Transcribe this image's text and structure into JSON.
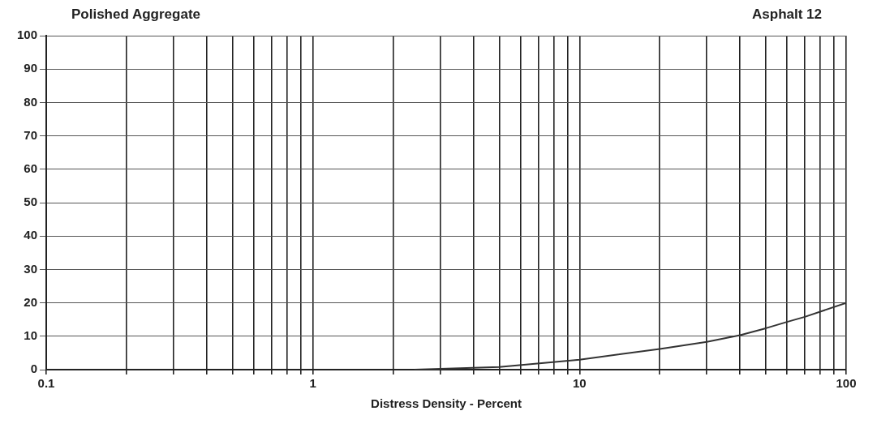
{
  "chart_data": {
    "type": "line",
    "title": "Polished Aggregate",
    "subtitle": "Asphalt 12",
    "xlabel": "Distress Density - Percent",
    "x": [
      2.4,
      5,
      10,
      20,
      30,
      40,
      50,
      60,
      70,
      100
    ],
    "series": [
      {
        "color": "#333333",
        "values": [
          0,
          0.8,
          3,
          6.2,
          8.3,
          10.3,
          12.4,
          14.3,
          15.8,
          20
        ]
      }
    ],
    "log": "x",
    "xlim": [
      0.1,
      100
    ],
    "ylim": [
      0,
      100
    ],
    "xticks": [
      0.1,
      {
        "value": 0.2,
        "label": null
      },
      {
        "value": 0.3,
        "label": null
      },
      {
        "value": 0.4,
        "label": null
      },
      {
        "value": 0.5,
        "label": null
      },
      {
        "value": 0.6,
        "label": null
      },
      {
        "value": 0.7,
        "label": null
      },
      {
        "value": 0.8,
        "label": null
      },
      {
        "value": 0.9,
        "label": null
      },
      1,
      {
        "value": 2,
        "label": null
      },
      {
        "value": 3,
        "label": null
      },
      {
        "value": 4,
        "label": null
      },
      {
        "value": 5,
        "label": null
      },
      {
        "value": 6,
        "label": null
      },
      {
        "value": 7,
        "label": null
      },
      {
        "value": 8,
        "label": null
      },
      {
        "value": 9,
        "label": null
      },
      10,
      {
        "value": 20,
        "label": null
      },
      {
        "value": 30,
        "label": null
      },
      {
        "value": 40,
        "label": null
      },
      {
        "value": 50,
        "label": null
      },
      {
        "value": 60,
        "label": null
      },
      {
        "value": 70,
        "label": null
      },
      {
        "value": 80,
        "label": null
      },
      {
        "value": 90,
        "label": null
      },
      100
    ],
    "yticks": [
      0,
      10,
      20,
      30,
      40,
      50,
      60,
      70,
      80,
      90,
      100
    ],
    "grid": true,
    "legend": false,
    "marker": "none",
    "line_style": "solid"
  }
}
